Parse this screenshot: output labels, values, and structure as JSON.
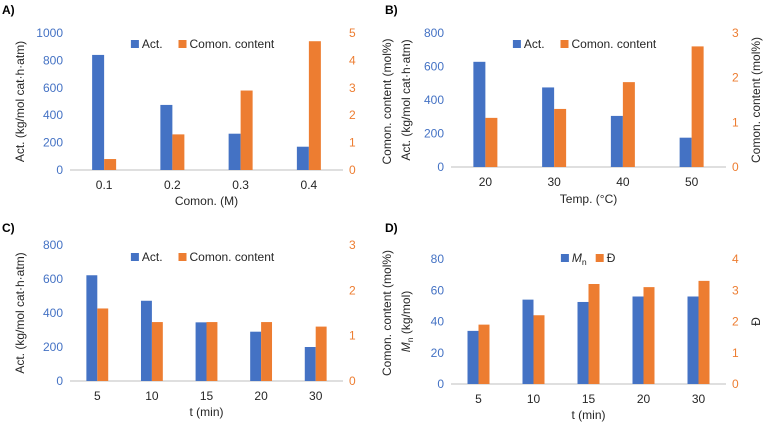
{
  "colors": {
    "blue": "#4472C4",
    "orange": "#ED7D31",
    "axis": "#BFBFBF",
    "text": "#262626"
  },
  "chart_data": [
    {
      "panel_label": "A)",
      "type": "bar",
      "categories": [
        "0.1",
        "0.2",
        "0.3",
        "0.4"
      ],
      "xlabel": "Comon. (M)",
      "ylabel_left": "Act. (kg/mol cat·h·atm)",
      "ylabel_right": "Comon. content (mol%)",
      "ylim_left": [
        0,
        1000
      ],
      "yticks_left": [
        0,
        200,
        400,
        600,
        800,
        1000
      ],
      "ylim_right": [
        0,
        5
      ],
      "yticks_right": [
        0,
        1,
        2,
        3,
        4,
        5
      ],
      "legend_position": "top-center",
      "grid": false,
      "series": [
        {
          "name": "Act.",
          "axis": "left",
          "color": "#4472C4",
          "values": [
            840,
            475,
            265,
            170
          ]
        },
        {
          "name": "Comon. content",
          "axis": "right",
          "color": "#ED7D31",
          "values": [
            0.4,
            1.3,
            2.9,
            4.7
          ]
        }
      ]
    },
    {
      "panel_label": "B)",
      "type": "bar",
      "categories": [
        "20",
        "30",
        "40",
        "50"
      ],
      "xlabel": "Temp. (°C)",
      "ylabel_left": "Act. (kg/mol cat·h·atm)",
      "ylabel_right": "Comon. content (mol%)",
      "ylim_left": [
        0,
        800
      ],
      "yticks_left": [
        0,
        200,
        400,
        600,
        800
      ],
      "ylim_right": [
        0,
        3
      ],
      "yticks_right": [
        0,
        1,
        2,
        3
      ],
      "legend_position": "top-center",
      "grid": false,
      "series": [
        {
          "name": "Act.",
          "axis": "left",
          "color": "#4472C4",
          "values": [
            628,
            475,
            305,
            175
          ]
        },
        {
          "name": "Comon. content",
          "axis": "right",
          "color": "#ED7D31",
          "values": [
            1.1,
            1.3,
            1.9,
            2.7
          ]
        }
      ]
    },
    {
      "panel_label": "C)",
      "type": "bar",
      "categories": [
        "5",
        "10",
        "15",
        "20",
        "30"
      ],
      "xlabel": "t (min)",
      "ylabel_left": "Act. (kg/mol cat·h·atm)",
      "ylabel_right": "Comon. content (mol%)",
      "ylim_left": [
        0,
        800
      ],
      "yticks_left": [
        0,
        200,
        400,
        600,
        800
      ],
      "ylim_right": [
        0,
        3
      ],
      "yticks_right": [
        0,
        1,
        2,
        3
      ],
      "legend_position": "top-center",
      "grid": false,
      "series": [
        {
          "name": "Act.",
          "axis": "left",
          "color": "#4472C4",
          "values": [
            622,
            472,
            345,
            290,
            200
          ]
        },
        {
          "name": "Comon. content",
          "axis": "right",
          "color": "#ED7D31",
          "values": [
            1.6,
            1.3,
            1.3,
            1.3,
            1.2
          ]
        }
      ]
    },
    {
      "panel_label": "D)",
      "type": "bar",
      "categories": [
        "5",
        "10",
        "15",
        "20",
        "30"
      ],
      "xlabel": "t (min)",
      "ylabel_left": "Mn (kg/mol)",
      "ylabel_right": "Đ",
      "ylim_left": [
        0,
        80
      ],
      "yticks_left": [
        0,
        20,
        40,
        60,
        80
      ],
      "ylim_right": [
        0,
        4
      ],
      "yticks_right": [
        0,
        1,
        2,
        3,
        4
      ],
      "legend_position": "top-center",
      "grid": false,
      "series": [
        {
          "name": "Mn",
          "axis": "left",
          "color": "#4472C4",
          "values": [
            34,
            54,
            52.5,
            56,
            56
          ]
        },
        {
          "name": "Đ",
          "axis": "right",
          "color": "#ED7D31",
          "values": [
            1.9,
            2.2,
            3.2,
            3.1,
            3.3
          ]
        }
      ]
    }
  ]
}
